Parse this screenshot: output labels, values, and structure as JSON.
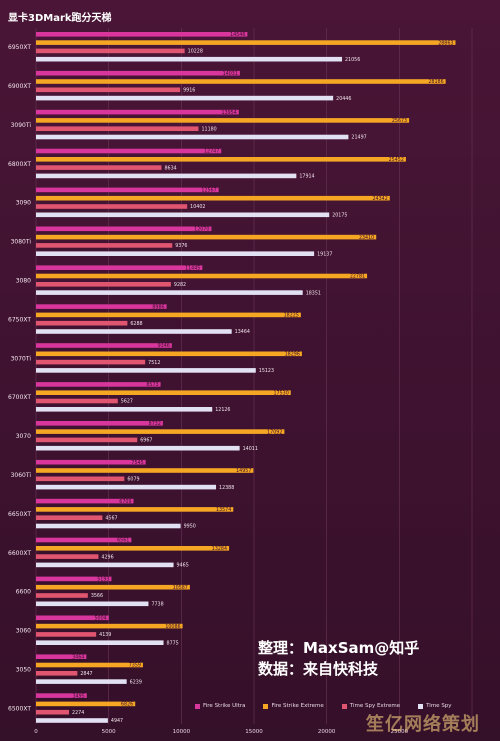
{
  "colors": {
    "fire_strike_ultra": "#d8369c",
    "fire_strike_extreme": "#f5a623",
    "time_spy_extreme": "#e0556f",
    "time_spy": "#e2e0f3",
    "background": "#4a1536",
    "grid": "#6b3556"
  },
  "credit": {
    "line1": "整理：MaxSam@知乎",
    "line2": "数据：来自快科技"
  },
  "watermark": "笙亿网络策划",
  "chart_data": {
    "type": "bar",
    "orientation": "horizontal",
    "title": "显卡3DMark跑分天梯",
    "xlim": [
      0,
      30000
    ],
    "x_ticks": [
      0,
      5000,
      10000,
      15000,
      20000,
      25000
    ],
    "grid": true,
    "legend_position": "bottom-right",
    "categories": [
      "6950XT",
      "6900XT",
      "3090Ti",
      "6800XT",
      "3090",
      "3080Ti",
      "3080",
      "6750XT",
      "3070Ti",
      "6700XT",
      "3070",
      "3060Ti",
      "6650XT",
      "6600XT",
      "6600",
      "3060",
      "3050",
      "6500XT"
    ],
    "series": [
      {
        "name": "Fire Strike Ultra",
        "color": "#d8369c",
        "values": [
          14546,
          14031,
          13954,
          12747,
          12567,
          12070,
          11445,
          8986,
          9346,
          8573,
          8732,
          7545,
          6709,
          6561,
          5193,
          5004,
          3464,
          3495
        ]
      },
      {
        "name": "Fire Strike Extreme",
        "color": "#f5a623",
        "values": [
          28863,
          28186,
          25673,
          25452,
          24342,
          23410,
          22781,
          18225,
          18296,
          17530,
          17092,
          14957,
          13574,
          13284,
          10587,
          10086,
          7359,
          6826
        ]
      },
      {
        "name": "Time Spy Extreme",
        "color": "#e0556f",
        "values": [
          10228,
          9916,
          11180,
          8634,
          10402,
          9376,
          9282,
          6288,
          7512,
          5627,
          6967,
          6079,
          4567,
          4296,
          3566,
          4139,
          2847,
          2274
        ]
      },
      {
        "name": "Time Spy",
        "color": "#e2e0f3",
        "values": [
          21056,
          20446,
          21497,
          17914,
          20175,
          19137,
          18351,
          13464,
          15123,
          12126,
          14011,
          12388,
          9950,
          9465,
          7738,
          8775,
          6239,
          4947
        ]
      }
    ]
  }
}
